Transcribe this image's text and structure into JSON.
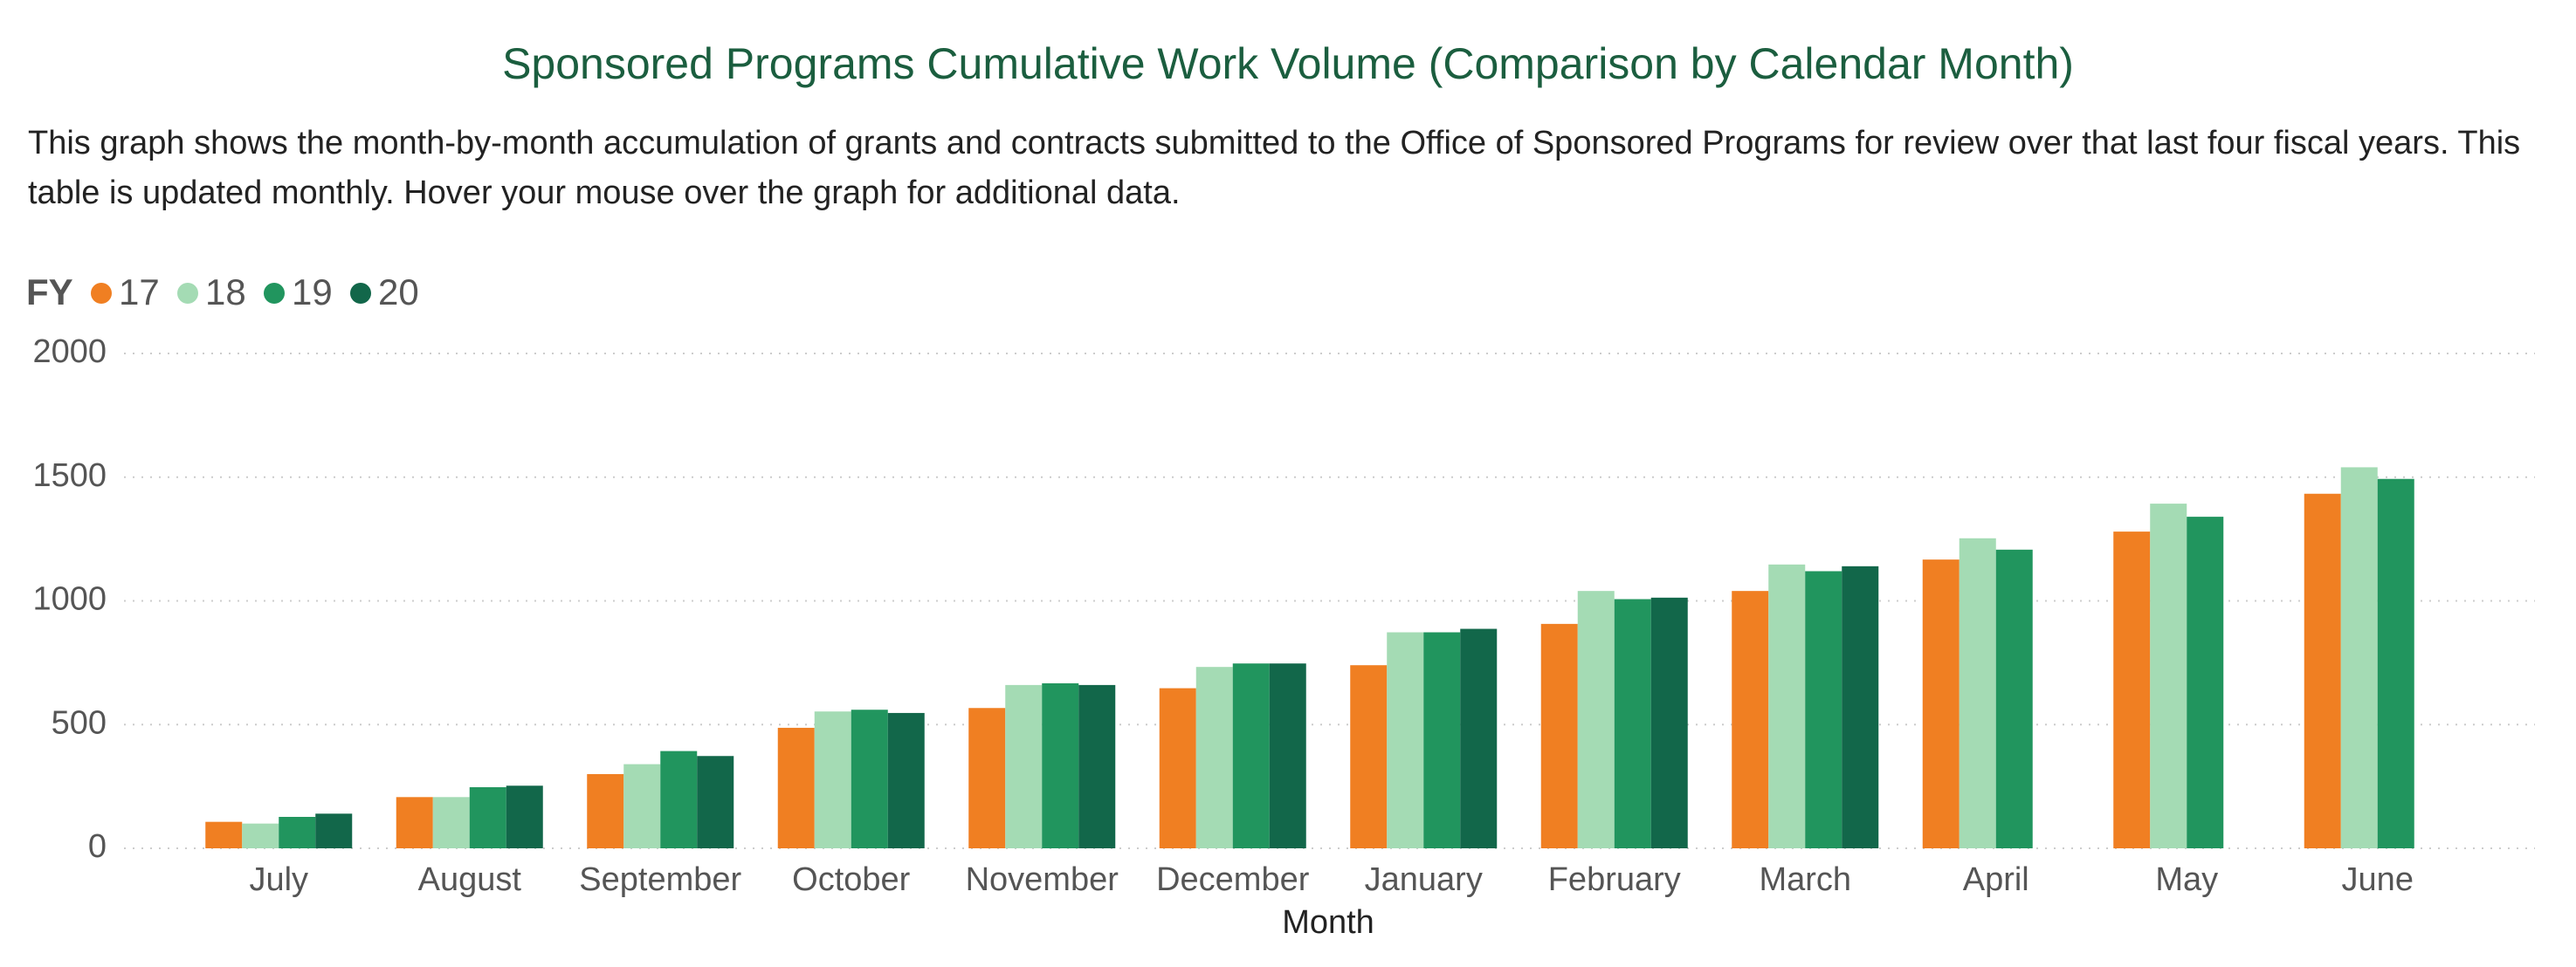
{
  "chart_data": {
    "type": "bar",
    "title": "Sponsored Programs Cumulative Work Volume (Comparison by Calendar Month)",
    "subtitle": "This graph shows the month-by-month accumulation of grants and contracts submitted to the Office of Sponsored Programs for review over that last four fiscal years.  This table is updated monthly.  Hover your mouse over the graph for additional data.",
    "x_label": "Month",
    "legend_title": "FY",
    "categories": [
      "July",
      "August",
      "September",
      "October",
      "November",
      "December",
      "January",
      "February",
      "March",
      "April",
      "May",
      "June"
    ],
    "series": [
      {
        "name": "17",
        "color": "#f07f22",
        "values": [
          107,
          207,
          300,
          487,
          567,
          647,
          740,
          907,
          1040,
          1167,
          1280,
          1433
        ]
      },
      {
        "name": "18",
        "color": "#a4dbb4",
        "values": [
          100,
          207,
          340,
          553,
          660,
          733,
          873,
          1040,
          1147,
          1253,
          1393,
          1540
        ]
      },
      {
        "name": "19",
        "color": "#21955e",
        "values": [
          127,
          247,
          393,
          560,
          667,
          747,
          873,
          1007,
          1120,
          1207,
          1340,
          1493
        ]
      },
      {
        "name": "20",
        "color": "#12674a",
        "values": [
          140,
          253,
          373,
          547,
          660,
          747,
          887,
          1013,
          1140,
          null,
          null,
          null
        ]
      }
    ],
    "ylim": [
      0,
      2000
    ],
    "yticks": [
      0,
      500,
      1000,
      1500,
      2000
    ],
    "grid": true
  }
}
